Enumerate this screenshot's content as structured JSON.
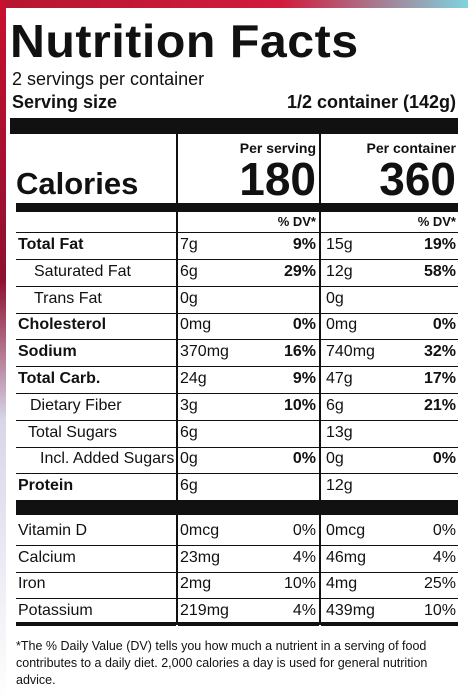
{
  "title": "Nutrition Facts",
  "servings": "2 servings per container",
  "serving_size": {
    "label": "Serving size",
    "value": "1/2 container (142g)"
  },
  "columns": [
    "Per serving",
    "Per container"
  ],
  "calories": {
    "label": "Calories",
    "per_serving": "180",
    "per_container": "360"
  },
  "dv_header": "% DV*",
  "nutrients": [
    {
      "name": "Total Fat",
      "per_serving": {
        "amount": "7g",
        "dv": "9%"
      },
      "per_container": {
        "amount": "15g",
        "dv": "19%"
      }
    },
    {
      "name": "Saturated Fat",
      "per_serving": {
        "amount": "6g",
        "dv": "29%"
      },
      "per_container": {
        "amount": "12g",
        "dv": "58%"
      }
    },
    {
      "name": "Trans Fat",
      "per_serving": {
        "amount": "0g"
      },
      "per_container": {
        "amount": "0g"
      }
    },
    {
      "name": "Cholesterol",
      "per_serving": {
        "amount": "0mg",
        "dv": "0%"
      },
      "per_container": {
        "amount": "0mg",
        "dv": "0%"
      }
    },
    {
      "name": "Sodium",
      "per_serving": {
        "amount": "370mg",
        "dv": "16%"
      },
      "per_container": {
        "amount": "740mg",
        "dv": "32%"
      }
    },
    {
      "name": "Total Carb.",
      "per_serving": {
        "amount": "24g",
        "dv": "9%"
      },
      "per_container": {
        "amount": "47g",
        "dv": "17%"
      }
    },
    {
      "name": "Dietary Fiber",
      "per_serving": {
        "amount": "3g",
        "dv": "10%"
      },
      "per_container": {
        "amount": "6g",
        "dv": "21%"
      }
    },
    {
      "name": "Total Sugars",
      "per_serving": {
        "amount": "6g"
      },
      "per_container": {
        "amount": "13g"
      }
    },
    {
      "name": "Incl. Added Sugars",
      "per_serving": {
        "amount": "0g",
        "dv": "0%"
      },
      "per_container": {
        "amount": "0g",
        "dv": "0%"
      }
    },
    {
      "name": "Protein",
      "per_serving": {
        "amount": "6g"
      },
      "per_container": {
        "amount": "12g"
      }
    }
  ],
  "vitamins": [
    {
      "name": "Vitamin D",
      "per_serving": {
        "amount": "0mcg",
        "dv": "0%"
      },
      "per_container": {
        "amount": "0mcg",
        "dv": "0%"
      }
    },
    {
      "name": "Calcium",
      "per_serving": {
        "amount": "23mg",
        "dv": "4%"
      },
      "per_container": {
        "amount": "46mg",
        "dv": "4%"
      }
    },
    {
      "name": "Iron",
      "per_serving": {
        "amount": "2mg",
        "dv": "10%"
      },
      "per_container": {
        "amount": "4mg",
        "dv": "25%"
      }
    },
    {
      "name": "Potassium",
      "per_serving": {
        "amount": "219mg",
        "dv": "4%"
      },
      "per_container": {
        "amount": "439mg",
        "dv": "10%"
      }
    }
  ],
  "footnote": "*The % Daily Value (DV) tells you how much a nutrient in a serving of food contributes to a daily diet. 2,000 calories a day is used for general nutrition advice."
}
